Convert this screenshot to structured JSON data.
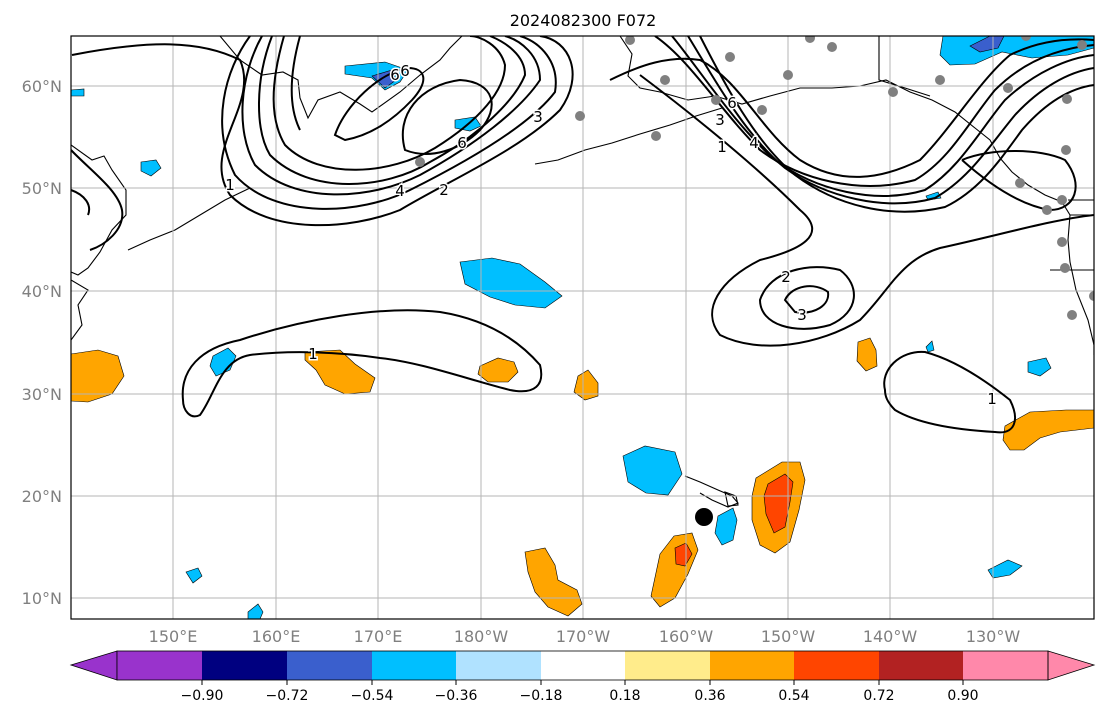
{
  "title": "2024082300 F072",
  "axes": {
    "lat_labels": [
      "60°N",
      "50°N",
      "40°N",
      "30°N",
      "20°N",
      "10°N"
    ],
    "lon_labels": [
      "150°E",
      "160°E",
      "170°E",
      "180°W",
      "170°W",
      "160°W",
      "150°W",
      "140°W",
      "130°W"
    ],
    "label_color": "#808080",
    "grid": true
  },
  "colorbar": {
    "ticks": [
      "−0.90",
      "−0.72",
      "−0.54",
      "−0.36",
      "−0.18",
      "0.18",
      "0.36",
      "0.54",
      "0.72",
      "0.90"
    ],
    "colors": [
      "#9933cc",
      "#000080",
      "#3a5fcd",
      "#00bfff",
      "#b0e2ff",
      "#ffffff",
      "#ffec8b",
      "#ffa500",
      "#ff4500",
      "#b22222",
      "#ff88aa"
    ],
    "extend": "both",
    "orientation": "horizontal"
  },
  "contours": {
    "labels": [
      "6",
      "6",
      "3",
      "6",
      "4",
      "2",
      "1",
      "3",
      "6",
      "4",
      "1",
      "2",
      "3",
      "1",
      "1"
    ],
    "line_color": "#000000"
  },
  "markers": {
    "storm_center": "black dot",
    "stations": "gray dots"
  }
}
